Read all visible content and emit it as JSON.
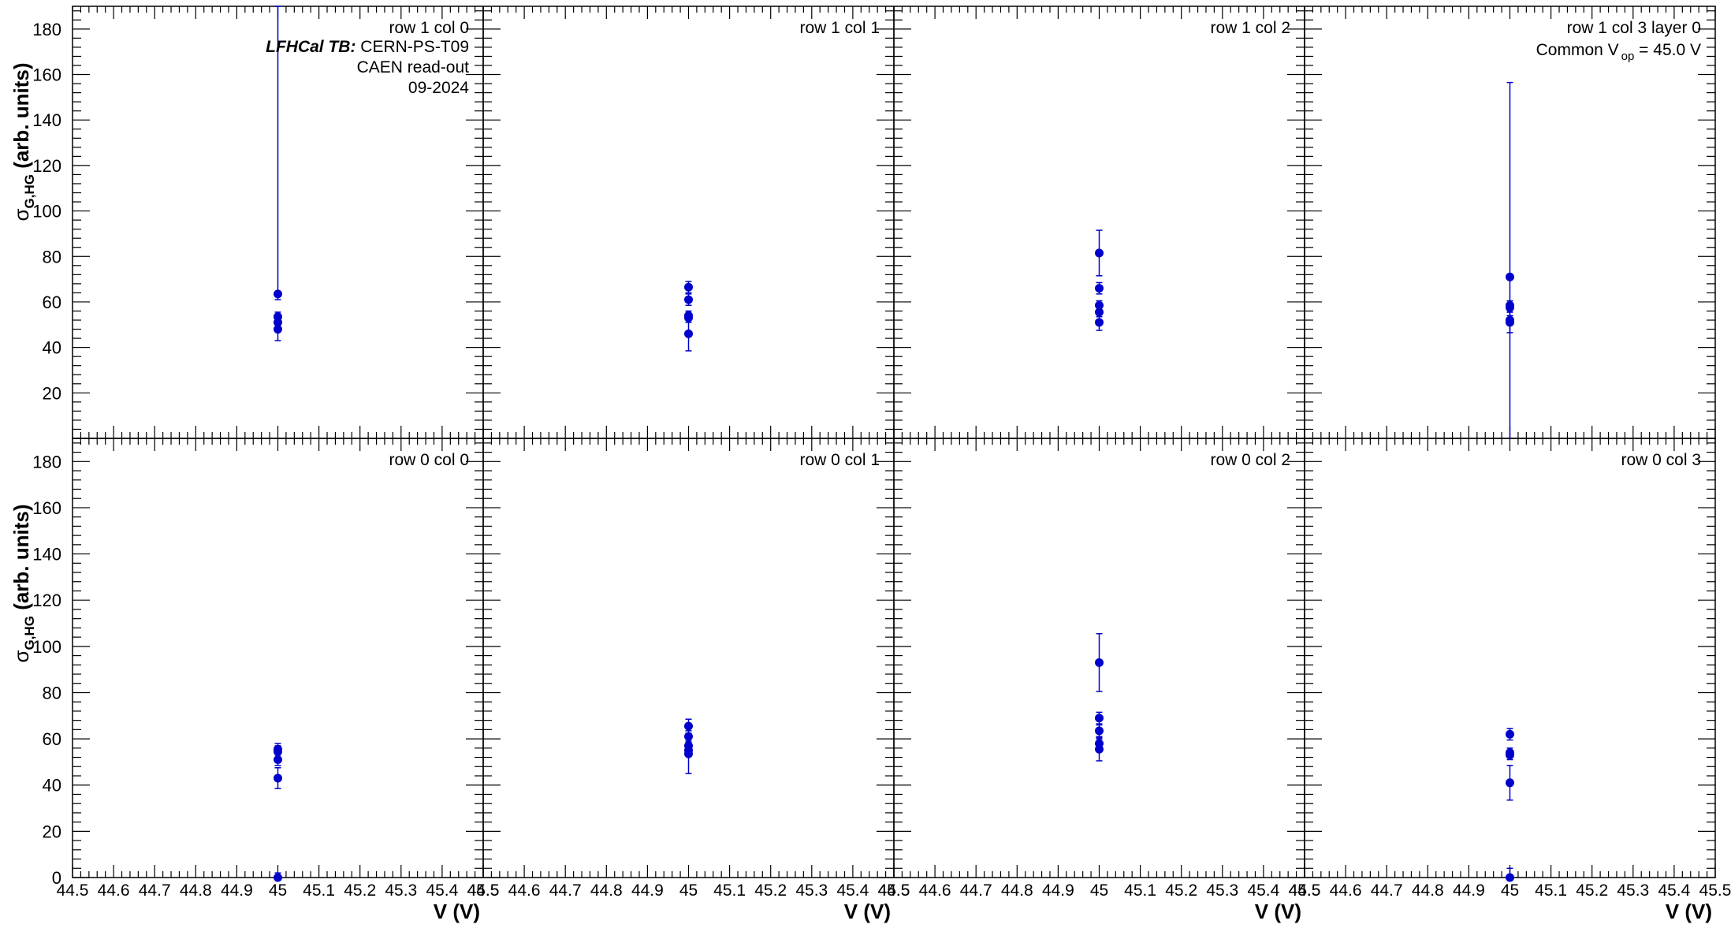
{
  "chart_data": {
    "type": "scatter",
    "y_label_main": "σ",
    "y_label_sub": "G,HG",
    "y_label_rest": " (arb. units)",
    "x_label": "V (V)",
    "xlim": [
      44.5,
      45.5
    ],
    "ylim": [
      0,
      190
    ],
    "x_tick_labels": [
      "44.5",
      "44.6",
      "44.7",
      "44.8",
      "44.9",
      "45",
      "45.1",
      "45.2",
      "45.3",
      "45.4",
      "45.5"
    ],
    "y_tick_labels_top": [
      "20",
      "40",
      "60",
      "80",
      "100",
      "120",
      "140",
      "160",
      "180"
    ],
    "y_tick_labels_bottom": [
      "0",
      "20",
      "40",
      "60",
      "80",
      "100",
      "120",
      "140",
      "160",
      "180"
    ],
    "marker_color": "#0000cc",
    "info": {
      "tb_label": "LFHCal TB:",
      "facility": "CERN-PS-T09",
      "readout": "CAEN read-out",
      "date": "09-2024"
    },
    "common_vop": {
      "prefix": "Common V",
      "subscript": "op",
      "suffix": " = 45.0 V"
    },
    "panels": [
      {
        "label": "row 1 col 0",
        "points": [
          {
            "x": 45.0,
            "y": 63.5,
            "ylo": 61.0,
            "yhi": 190
          },
          {
            "x": 45.0,
            "y": 53.5,
            "ylo": 51.5,
            "yhi": 55.5
          },
          {
            "x": 45.0,
            "y": 51.0,
            "ylo": 49.0,
            "yhi": 53.0
          },
          {
            "x": 45.0,
            "y": 48.0,
            "ylo": 43.0,
            "yhi": 53.0
          }
        ]
      },
      {
        "label": "row 1 col 1",
        "points": [
          {
            "x": 45.0,
            "y": 66.5,
            "ylo": 64.0,
            "yhi": 69.0
          },
          {
            "x": 45.0,
            "y": 61.0,
            "ylo": 58.5,
            "yhi": 63.5
          },
          {
            "x": 45.0,
            "y": 54.0,
            "ylo": 52.0,
            "yhi": 56.0
          },
          {
            "x": 45.0,
            "y": 53.0,
            "ylo": 51.0,
            "yhi": 55.0
          },
          {
            "x": 45.0,
            "y": 46.0,
            "ylo": 38.5,
            "yhi": 53.5
          }
        ]
      },
      {
        "label": "row 1 col 2",
        "points": [
          {
            "x": 45.0,
            "y": 81.5,
            "ylo": 71.5,
            "yhi": 91.5
          },
          {
            "x": 45.0,
            "y": 66.0,
            "ylo": 63.5,
            "yhi": 68.5
          },
          {
            "x": 45.0,
            "y": 58.5,
            "ylo": 56.5,
            "yhi": 60.5
          },
          {
            "x": 45.0,
            "y": 55.5,
            "ylo": 53.5,
            "yhi": 57.5
          },
          {
            "x": 45.0,
            "y": 51.0,
            "ylo": 47.5,
            "yhi": 54.5
          }
        ]
      },
      {
        "label": "row 1 col 3 layer 0",
        "points": [
          {
            "x": 45.0,
            "y": 71.0,
            "ylo": 0,
            "yhi": 156.5
          },
          {
            "x": 45.0,
            "y": 58.5,
            "ylo": 56.5,
            "yhi": 60.5
          },
          {
            "x": 45.0,
            "y": 57.5,
            "ylo": 55.5,
            "yhi": 59.5
          },
          {
            "x": 45.0,
            "y": 52.0,
            "ylo": 50.0,
            "yhi": 54.0
          },
          {
            "x": 45.0,
            "y": 51.0,
            "ylo": 46.5,
            "yhi": 55.5
          }
        ]
      },
      {
        "label": "row 0 col 0",
        "points": [
          {
            "x": 45.0,
            "y": 55.5,
            "ylo": 53.0,
            "yhi": 58.0
          },
          {
            "x": 45.0,
            "y": 54.5,
            "ylo": 52.0,
            "yhi": 57.0
          },
          {
            "x": 45.0,
            "y": 51.0,
            "ylo": 48.5,
            "yhi": 53.5
          },
          {
            "x": 45.0,
            "y": 43.0,
            "ylo": 38.5,
            "yhi": 47.5
          },
          {
            "x": 45.0,
            "y": 0.0,
            "ylo": 0.0,
            "yhi": 2.0
          }
        ]
      },
      {
        "label": "row 0 col 1",
        "points": [
          {
            "x": 45.0,
            "y": 65.5,
            "ylo": 62.5,
            "yhi": 68.5
          },
          {
            "x": 45.0,
            "y": 61.0,
            "ylo": 58.5,
            "yhi": 63.5
          },
          {
            "x": 45.0,
            "y": 57.0,
            "ylo": 55.0,
            "yhi": 59.0
          },
          {
            "x": 45.0,
            "y": 55.0,
            "ylo": 53.0,
            "yhi": 57.0
          },
          {
            "x": 45.0,
            "y": 53.5,
            "ylo": 45.0,
            "yhi": 62.0
          }
        ]
      },
      {
        "label": "row 0 col 2",
        "points": [
          {
            "x": 45.0,
            "y": 93.0,
            "ylo": 80.5,
            "yhi": 105.5
          },
          {
            "x": 45.0,
            "y": 69.0,
            "ylo": 66.5,
            "yhi": 71.5
          },
          {
            "x": 45.0,
            "y": 63.5,
            "ylo": 61.0,
            "yhi": 66.0
          },
          {
            "x": 45.0,
            "y": 58.0,
            "ylo": 56.0,
            "yhi": 60.0
          },
          {
            "x": 45.0,
            "y": 55.5,
            "ylo": 50.5,
            "yhi": 60.5
          }
        ]
      },
      {
        "label": "row 0 col 3",
        "points": [
          {
            "x": 45.0,
            "y": 62.0,
            "ylo": 59.5,
            "yhi": 64.5
          },
          {
            "x": 45.0,
            "y": 54.0,
            "ylo": 52.0,
            "yhi": 56.0
          },
          {
            "x": 45.0,
            "y": 53.0,
            "ylo": 51.0,
            "yhi": 55.0
          },
          {
            "x": 45.0,
            "y": 41.0,
            "ylo": 33.5,
            "yhi": 48.5
          },
          {
            "x": 45.0,
            "y": 0.0,
            "ylo": 0.0,
            "yhi": 4.0
          }
        ]
      }
    ]
  }
}
